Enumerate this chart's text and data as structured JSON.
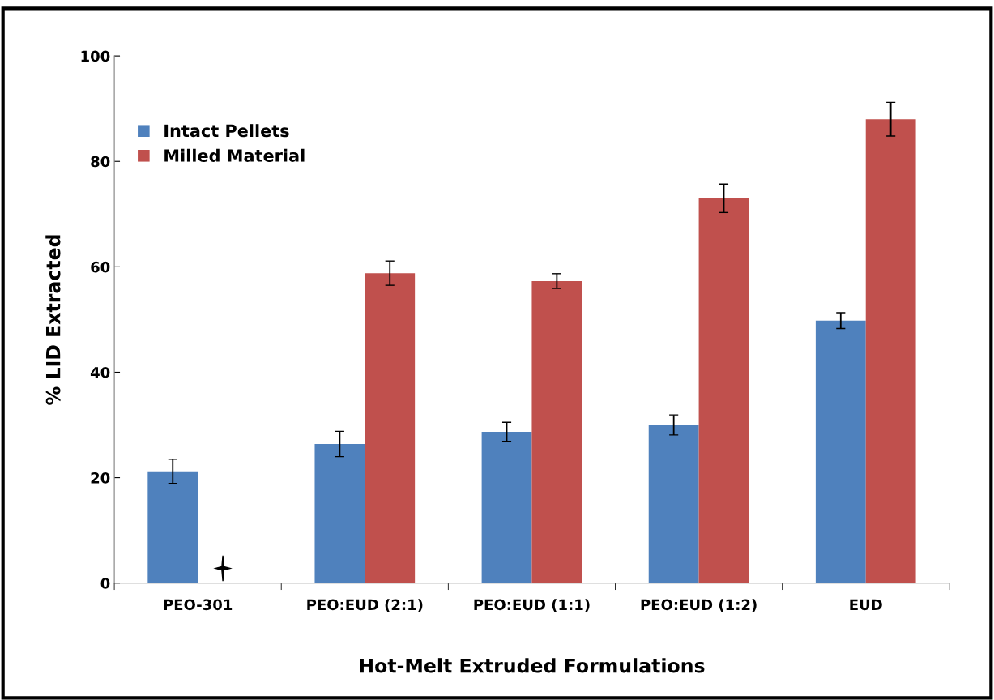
{
  "chart_data": {
    "type": "bar",
    "xlabel": "Hot-Melt Extruded Formulations",
    "ylabel": "% LID Extracted",
    "categories": [
      "PEO-301",
      "PEO:EUD (2:1)",
      "PEO:EUD (1:1)",
      "PEO:EUD (1:2)",
      "EUD"
    ],
    "series": [
      {
        "name": "Intact Pellets",
        "color": "#4f81bd",
        "values": [
          21.2,
          26.4,
          28.7,
          30.0,
          49.8
        ],
        "errors": [
          2.3,
          2.4,
          1.8,
          1.9,
          1.5
        ]
      },
      {
        "name": "Milled Material",
        "color": "#c0504d",
        "values": [
          null,
          58.8,
          57.3,
          73.0,
          88.0
        ],
        "errors": [
          null,
          2.3,
          1.4,
          2.7,
          3.2
        ]
      }
    ],
    "ylim": [
      0,
      100
    ],
    "yticks": [
      0,
      20,
      40,
      60,
      80,
      100
    ],
    "grid": false,
    "legend": "top left"
  }
}
